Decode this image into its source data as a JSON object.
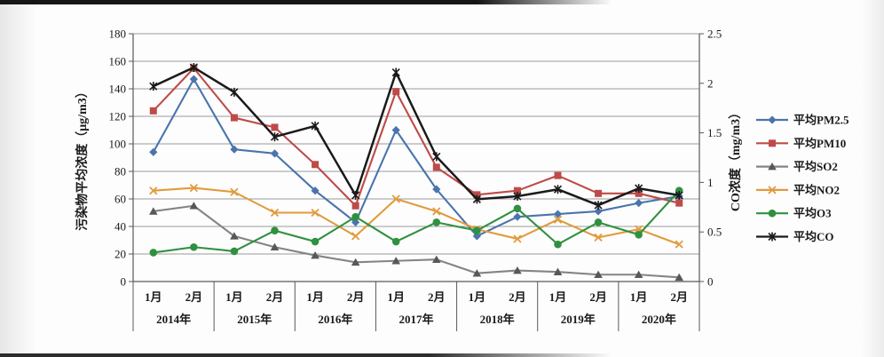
{
  "chart_data": {
    "type": "line",
    "title": "",
    "grid": true,
    "legend_position": "right",
    "groups": [
      {
        "year": "2014年",
        "months": [
          "1月",
          "2月"
        ]
      },
      {
        "year": "2015年",
        "months": [
          "1月",
          "2月"
        ]
      },
      {
        "year": "2016年",
        "months": [
          "1月",
          "2月"
        ]
      },
      {
        "year": "2017年",
        "months": [
          "1月",
          "2月"
        ]
      },
      {
        "year": "2018年",
        "months": [
          "1月",
          "2月"
        ]
      },
      {
        "year": "2019年",
        "months": [
          "1月",
          "2月"
        ]
      },
      {
        "year": "2020年",
        "months": [
          "1月",
          "2月"
        ]
      }
    ],
    "left_axis": {
      "title": "污染物平均浓度（μg/m3）",
      "min": 0,
      "max": 180,
      "step": 20,
      "tick_labels": [
        "0",
        "20",
        "40",
        "60",
        "80",
        "100",
        "120",
        "140",
        "160",
        "180"
      ]
    },
    "right_axis": {
      "title": "CO浓度（mg/m3）",
      "min": 0,
      "max": 2.5,
      "step": 0.5,
      "tick_labels": [
        "0",
        "0.5",
        "1",
        "1.5",
        "2",
        "2.5"
      ]
    },
    "series": [
      {
        "key": "pm25",
        "name": "平均PM2.5",
        "color": "#4A74AC",
        "marker": "diamond",
        "axis": "left",
        "values": [
          94,
          147,
          96,
          93,
          66,
          43,
          110,
          67,
          33,
          47,
          49,
          51,
          57,
          62
        ]
      },
      {
        "key": "pm10",
        "name": "平均PM10",
        "color": "#BE4B48",
        "marker": "square",
        "axis": "left",
        "values": [
          124,
          155,
          119,
          112,
          85,
          55,
          138,
          83,
          63,
          66,
          77,
          64,
          64,
          57
        ]
      },
      {
        "key": "so2",
        "name": "平均SO2",
        "color": "#848484",
        "marker_color": "#55585C",
        "marker": "triangle",
        "axis": "left",
        "values": [
          51,
          55,
          33,
          25,
          19,
          14,
          15,
          16,
          6,
          8,
          7,
          5,
          5,
          3
        ]
      },
      {
        "key": "no2",
        "name": "平均NO2",
        "color": "#E19B3C",
        "marker": "x",
        "axis": "left",
        "values": [
          66,
          68,
          65,
          50,
          50,
          33,
          60,
          51,
          38,
          31,
          45,
          32,
          38,
          27
        ]
      },
      {
        "key": "o3",
        "name": "平均O3",
        "color": "#2F9140",
        "marker": "circle",
        "axis": "left",
        "values": [
          21,
          25,
          22,
          37,
          29,
          47,
          29,
          43,
          37,
          53,
          27,
          43,
          34,
          66
        ]
      },
      {
        "key": "co",
        "name": "平均CO",
        "color": "#1A1A1A",
        "marker": "star",
        "axis": "right",
        "values": [
          1.97,
          2.16,
          1.91,
          1.46,
          1.57,
          0.87,
          2.11,
          1.26,
          0.83,
          0.86,
          0.93,
          0.77,
          0.94,
          0.87
        ]
      }
    ]
  }
}
